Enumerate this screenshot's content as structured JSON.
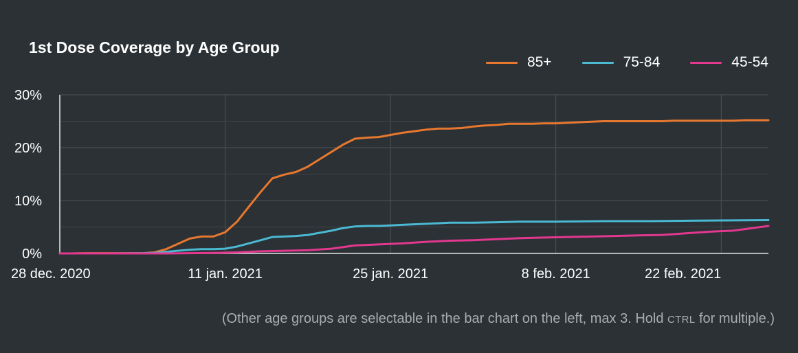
{
  "chart_data": {
    "type": "line",
    "title": "1st Dose Coverage by Age Group",
    "xlabel": "",
    "ylabel": "",
    "x_range": [
      "2020-12-28",
      "2021-02-26"
    ],
    "ylim": [
      0,
      30
    ],
    "y_ticks": [
      {
        "value": 0,
        "label": "0%"
      },
      {
        "value": 10,
        "label": "10%"
      },
      {
        "value": 20,
        "label": "20%"
      },
      {
        "value": 30,
        "label": "30%"
      }
    ],
    "x_ticks": [
      {
        "date": "2020-12-28",
        "label": "28 dec. 2020"
      },
      {
        "date": "2021-01-11",
        "label": "11 jan. 2021"
      },
      {
        "date": "2021-01-25",
        "label": "25 jan. 2021"
      },
      {
        "date": "2021-02-08",
        "label": "8 feb. 2021"
      },
      {
        "date": "2021-02-22",
        "label": "22 feb. 2021"
      }
    ],
    "grid": true,
    "legend_position": "top-right",
    "series": [
      {
        "name": "85+",
        "color": "#e8782f",
        "x": [
          "2020-12-28",
          "2020-12-29",
          "2020-12-30",
          "2020-12-31",
          "2021-01-01",
          "2021-01-02",
          "2021-01-03",
          "2021-01-04",
          "2021-01-05",
          "2021-01-06",
          "2021-01-07",
          "2021-01-08",
          "2021-01-09",
          "2021-01-10",
          "2021-01-11",
          "2021-01-12",
          "2021-01-13",
          "2021-01-14",
          "2021-01-15",
          "2021-01-16",
          "2021-01-17",
          "2021-01-18",
          "2021-01-19",
          "2021-01-20",
          "2021-01-21",
          "2021-01-22",
          "2021-01-23",
          "2021-01-24",
          "2021-01-25",
          "2021-01-26",
          "2021-01-27",
          "2021-01-28",
          "2021-01-29",
          "2021-01-30",
          "2021-01-31",
          "2021-02-01",
          "2021-02-02",
          "2021-02-03",
          "2021-02-04",
          "2021-02-05",
          "2021-02-06",
          "2021-02-07",
          "2021-02-08",
          "2021-02-09",
          "2021-02-10",
          "2021-02-11",
          "2021-02-12",
          "2021-02-13",
          "2021-02-14",
          "2021-02-15",
          "2021-02-16",
          "2021-02-17",
          "2021-02-18",
          "2021-02-19",
          "2021-02-20",
          "2021-02-21",
          "2021-02-22",
          "2021-02-23",
          "2021-02-24",
          "2021-02-25",
          "2021-02-26"
        ],
        "values": [
          0.0,
          0.0,
          0.05,
          0.05,
          0.05,
          0.05,
          0.05,
          0.05,
          0.2,
          0.8,
          1.8,
          2.8,
          3.2,
          3.2,
          4.0,
          6.0,
          8.8,
          11.6,
          14.2,
          14.9,
          15.4,
          16.4,
          17.8,
          19.2,
          20.6,
          21.7,
          21.9,
          22.0,
          22.4,
          22.8,
          23.1,
          23.4,
          23.6,
          23.6,
          23.7,
          24.0,
          24.2,
          24.3,
          24.5,
          24.5,
          24.5,
          24.6,
          24.6,
          24.7,
          24.8,
          24.9,
          25.0,
          25.0,
          25.0,
          25.0,
          25.0,
          25.0,
          25.1,
          25.1,
          25.1,
          25.1,
          25.1,
          25.1,
          25.2,
          25.2,
          25.2
        ]
      },
      {
        "name": "75-84",
        "color": "#4bb9d2",
        "x": [
          "2020-12-28",
          "2021-01-01",
          "2021-01-04",
          "2021-01-05",
          "2021-01-06",
          "2021-01-07",
          "2021-01-08",
          "2021-01-09",
          "2021-01-10",
          "2021-01-11",
          "2021-01-12",
          "2021-01-13",
          "2021-01-14",
          "2021-01-15",
          "2021-01-16",
          "2021-01-17",
          "2021-01-18",
          "2021-01-19",
          "2021-01-20",
          "2021-01-21",
          "2021-01-22",
          "2021-01-23",
          "2021-01-24",
          "2021-01-25",
          "2021-01-26",
          "2021-01-28",
          "2021-01-30",
          "2021-02-01",
          "2021-02-03",
          "2021-02-05",
          "2021-02-08",
          "2021-02-12",
          "2021-02-16",
          "2021-02-20",
          "2021-02-26"
        ],
        "values": [
          0.0,
          0.0,
          0.05,
          0.1,
          0.3,
          0.5,
          0.7,
          0.8,
          0.8,
          0.9,
          1.3,
          1.9,
          2.5,
          3.1,
          3.2,
          3.3,
          3.5,
          3.9,
          4.3,
          4.8,
          5.1,
          5.2,
          5.2,
          5.3,
          5.4,
          5.6,
          5.8,
          5.8,
          5.9,
          6.0,
          6.0,
          6.1,
          6.1,
          6.2,
          6.3
        ]
      },
      {
        "name": "45-54",
        "color": "#e2388f",
        "x": [
          "2020-12-28",
          "2021-01-06",
          "2021-01-10",
          "2021-01-12",
          "2021-01-14",
          "2021-01-16",
          "2021-01-18",
          "2021-01-20",
          "2021-01-22",
          "2021-01-24",
          "2021-01-26",
          "2021-01-28",
          "2021-01-30",
          "2021-02-01",
          "2021-02-03",
          "2021-02-05",
          "2021-02-07",
          "2021-02-09",
          "2021-02-11",
          "2021-02-13",
          "2021-02-15",
          "2021-02-17",
          "2021-02-19",
          "2021-02-21",
          "2021-02-23",
          "2021-02-24",
          "2021-02-25",
          "2021-02-26"
        ],
        "values": [
          0.0,
          0.0,
          0.1,
          0.2,
          0.4,
          0.5,
          0.6,
          0.9,
          1.5,
          1.7,
          1.9,
          2.2,
          2.4,
          2.5,
          2.7,
          2.9,
          3.0,
          3.1,
          3.2,
          3.3,
          3.4,
          3.5,
          3.8,
          4.1,
          4.3,
          4.6,
          4.9,
          5.2
        ]
      }
    ]
  },
  "footnote": {
    "before": "(Other age groups are selectable in the bar chart on the left, max 3. Hold ",
    "key": "CTRL",
    "after": " for multiple.)"
  }
}
